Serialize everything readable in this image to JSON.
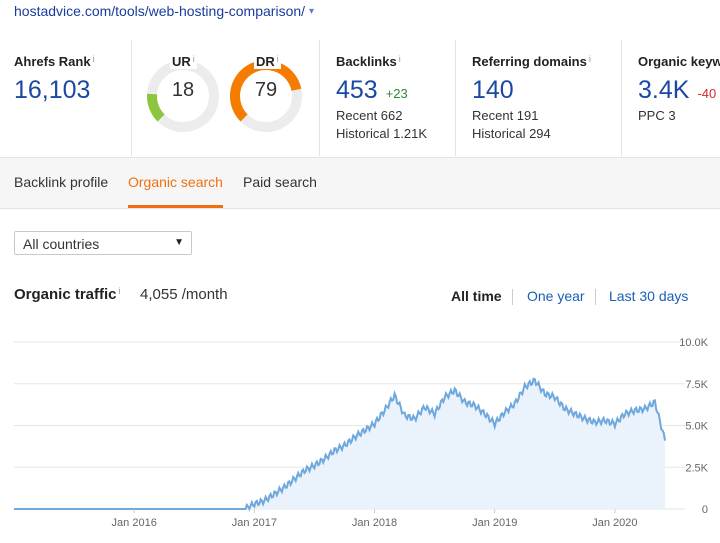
{
  "url": {
    "text": "hostadvice.com/tools/web-hosting-comparison/",
    "caret": "▾"
  },
  "metrics": {
    "ahrefs_rank": {
      "label": "Ahrefs Rank",
      "info": "i",
      "value": "16,103"
    },
    "ur": {
      "label": "UR",
      "info": "i",
      "value": "18",
      "level": 18
    },
    "dr": {
      "label": "DR",
      "info": "i",
      "value": "79",
      "level": 79
    },
    "backlinks": {
      "label": "Backlinks",
      "info": "i",
      "value": "453",
      "delta": "+23",
      "recent": "Recent 662",
      "historical": "Historical 1.21K"
    },
    "referring_domains": {
      "label": "Referring domains",
      "info": "i",
      "value": "140",
      "recent": "Recent 191",
      "historical": "Historical 294"
    },
    "organic_keywords": {
      "label": "Organic keyw",
      "value": "3.4K",
      "delta": "-40",
      "ppc": "PPC 3"
    }
  },
  "tabs": [
    {
      "label": "Backlink profile",
      "active": false
    },
    {
      "label": "Organic search",
      "active": true
    },
    {
      "label": "Paid search",
      "active": false
    }
  ],
  "country_select": {
    "value": "All countries",
    "arrow": "▼"
  },
  "organic_traffic": {
    "title": "Organic traffic",
    "info": "i",
    "value": "4,055 /month"
  },
  "ranges": [
    {
      "label": "All time",
      "active": true
    },
    {
      "label": "One year",
      "active": false
    },
    {
      "label": "Last 30 days",
      "active": false
    }
  ],
  "colors": {
    "accent": "#f07011",
    "link": "#1a5fb4",
    "ur_gauge": "#8cc63f",
    "dr_gauge": "#f57c00",
    "line": "#6fa8dc",
    "area": "#eaf3fb"
  },
  "chart_data": {
    "type": "area",
    "ylim": [
      0,
      10000
    ],
    "y_ticks": [
      "0",
      "2.5K",
      "5.0K",
      "7.5K",
      "10.0K"
    ],
    "x_ticks": [
      "Jan 2016",
      "Jan 2017",
      "Jan 2018",
      "Jan 2019",
      "Jan 2020"
    ],
    "series": [
      {
        "x": [
          "2015-01",
          "2015-06",
          "2016-01",
          "2016-06",
          "2016-12",
          "2017-01",
          "2017-02",
          "2017-03",
          "2017-04",
          "2017-05",
          "2017-06",
          "2017-07",
          "2017-08",
          "2017-09",
          "2017-10",
          "2017-11",
          "2017-12",
          "2018-01",
          "2018-02",
          "2018-03",
          "2018-04",
          "2018-05",
          "2018-06",
          "2018-07",
          "2018-08",
          "2018-09",
          "2018-10",
          "2018-11",
          "2018-12",
          "2019-01",
          "2019-02",
          "2019-03",
          "2019-04",
          "2019-05",
          "2019-06",
          "2019-07",
          "2019-08",
          "2019-09",
          "2019-10",
          "2019-11",
          "2019-12",
          "2020-01",
          "2020-02",
          "2020-03",
          "2020-04",
          "2020-05",
          "2020-06"
        ],
        "values": [
          0,
          0,
          0,
          0,
          0,
          300,
          500,
          900,
          1300,
          1800,
          2300,
          2600,
          3000,
          3500,
          3800,
          4300,
          4700,
          5100,
          5900,
          6800,
          5600,
          5400,
          6100,
          5700,
          6700,
          7100,
          6400,
          6200,
          5700,
          5100,
          5800,
          6300,
          7300,
          7700,
          6900,
          6700,
          6000,
          5700,
          5400,
          5200,
          5300,
          5100,
          5700,
          5900,
          6000,
          6400,
          4100
        ]
      }
    ]
  }
}
